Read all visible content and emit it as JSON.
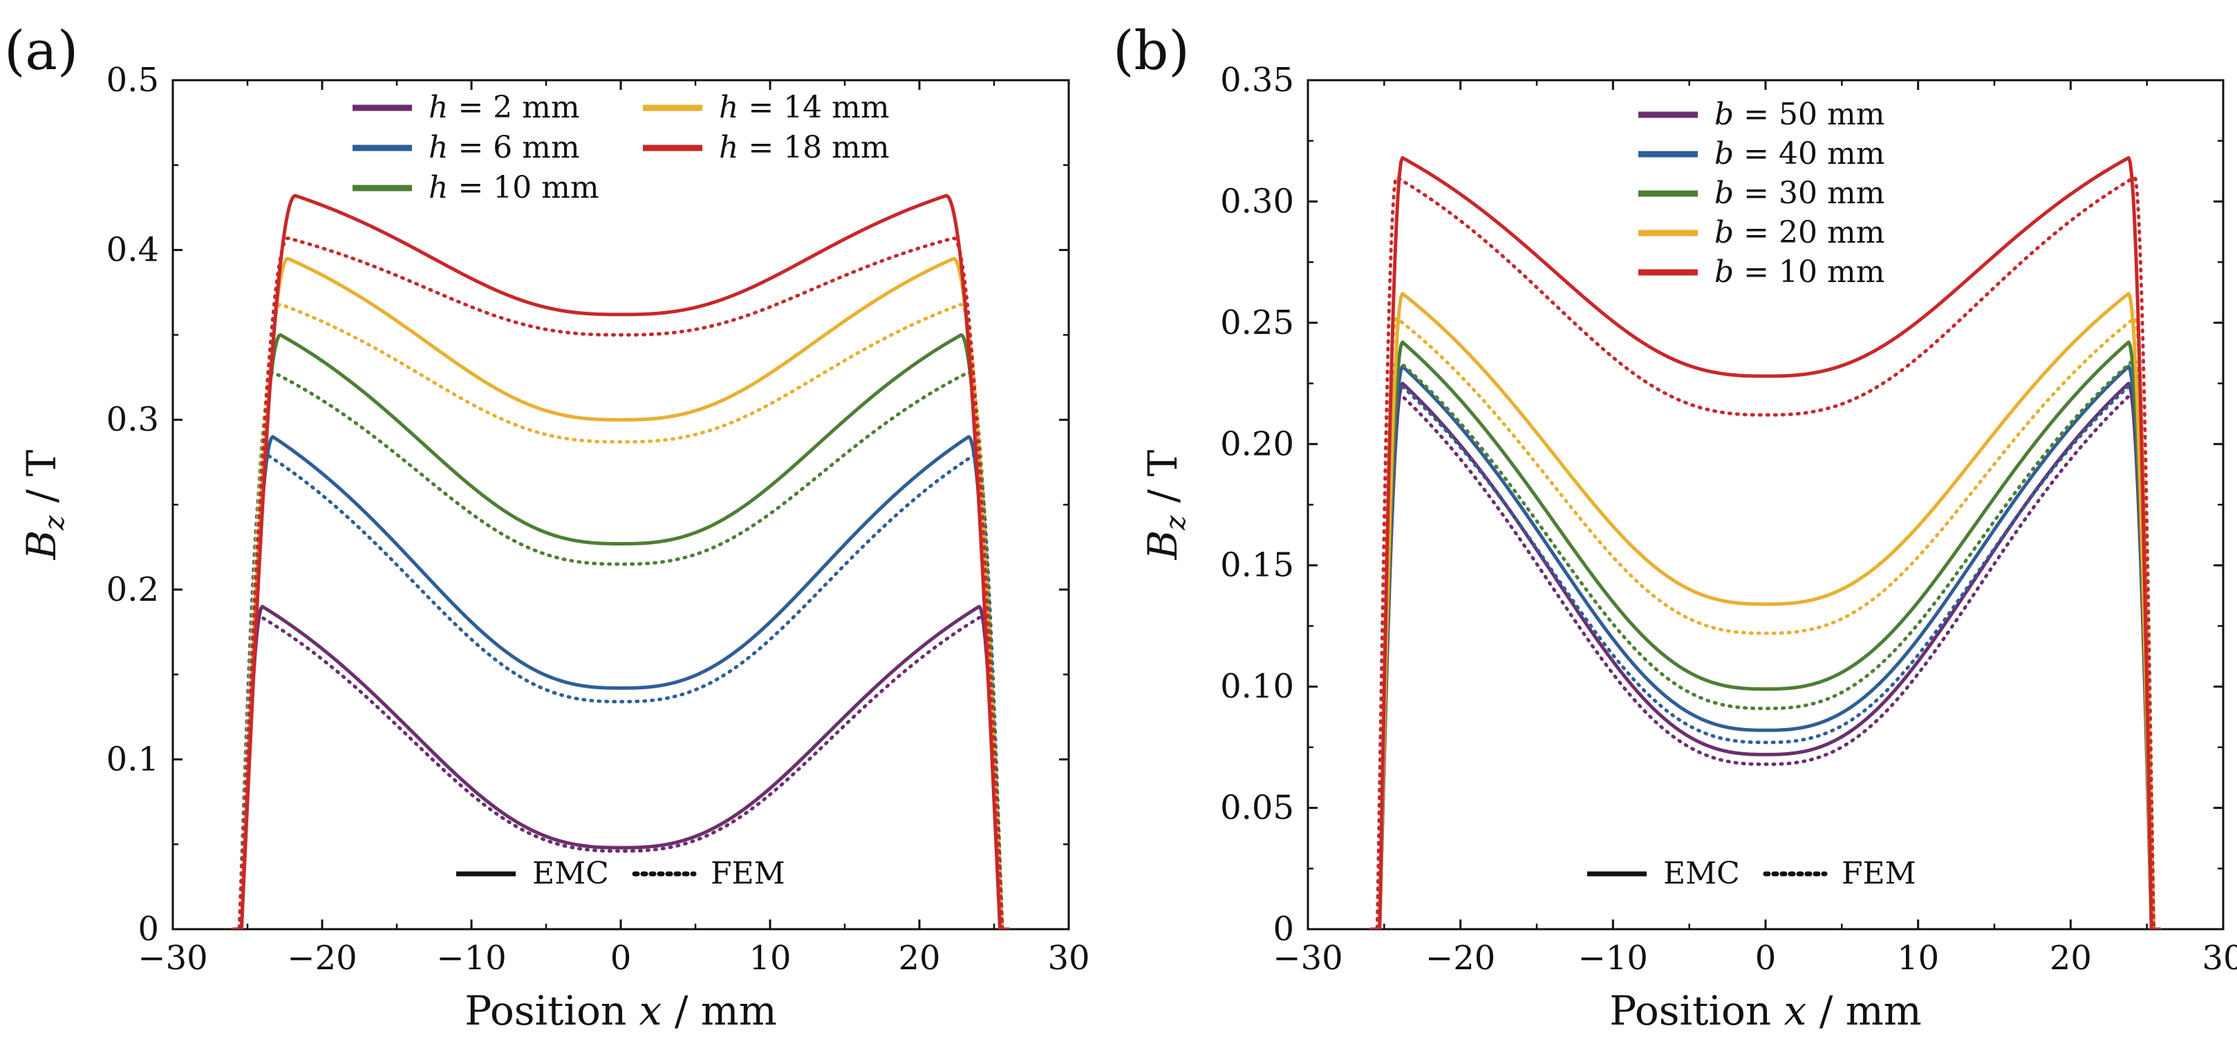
{
  "figure": {
    "line_colors": {
      "purple": "#6B2F6E",
      "blue": "#2E5E98",
      "green": "#4E7E35",
      "yellow": "#E8B030",
      "red": "#C8282A"
    },
    "style_legend": {
      "solid_label": "EMC",
      "dotted_label": "FEM"
    }
  },
  "chart_data": [
    {
      "panel_label": "(a)",
      "type": "line",
      "xlabel_prefix": "Position ",
      "xlabel_var": "x",
      "xlabel_suffix": " / mm",
      "ylabel_var": "B",
      "ylabel_sub": "z",
      "ylabel_suffix": " / T",
      "xlim": [
        -30,
        30
      ],
      "ylim": [
        0,
        0.5
      ],
      "x_ticks": [
        -30,
        -20,
        -10,
        0,
        10,
        20,
        30
      ],
      "x_tick_labels": [
        "−30",
        "−20",
        "−10",
        "0",
        "10",
        "20",
        "30"
      ],
      "y_ticks": [
        0,
        0.1,
        0.2,
        0.3,
        0.4,
        0.5
      ],
      "y_tick_labels": [
        "0",
        "0.1",
        "0.2",
        "0.3",
        "0.4",
        "0.5"
      ],
      "legend_placement": "top-center",
      "series": [
        {
          "name": "h = 2 mm",
          "legend_var": "h",
          "legend_value": " = 2 mm",
          "color": "#6B2F6E",
          "x_edge": 25.4,
          "emc": {
            "center": 0.048,
            "peak": 0.19,
            "peak_x": 24.0
          },
          "fem": {
            "center": 0.046,
            "peak": 0.185,
            "peak_x": 24.3
          }
        },
        {
          "name": "h = 6 mm",
          "legend_var": "h",
          "legend_value": " = 6 mm",
          "color": "#2E5E98",
          "x_edge": 25.4,
          "emc": {
            "center": 0.142,
            "peak": 0.29,
            "peak_x": 23.3
          },
          "fem": {
            "center": 0.134,
            "peak": 0.28,
            "peak_x": 23.8
          }
        },
        {
          "name": "h = 10 mm",
          "legend_var": "h",
          "legend_value": " = 10 mm",
          "color": "#4E7E35",
          "x_edge": 25.4,
          "emc": {
            "center": 0.227,
            "peak": 0.35,
            "peak_x": 22.8
          },
          "fem": {
            "center": 0.215,
            "peak": 0.328,
            "peak_x": 23.3
          }
        },
        {
          "name": "h = 14 mm",
          "legend_var": "h",
          "legend_value": " = 14 mm",
          "color": "#E8B030",
          "x_edge": 25.4,
          "emc": {
            "center": 0.3,
            "peak": 0.395,
            "peak_x": 22.3
          },
          "fem": {
            "center": 0.287,
            "peak": 0.368,
            "peak_x": 22.8
          }
        },
        {
          "name": "h = 18 mm",
          "legend_var": "h",
          "legend_value": " = 18 mm",
          "color": "#C8282A",
          "x_edge": 25.4,
          "emc": {
            "center": 0.362,
            "peak": 0.432,
            "peak_x": 21.8
          },
          "fem": {
            "center": 0.35,
            "peak": 0.407,
            "peak_x": 22.3
          }
        }
      ]
    },
    {
      "panel_label": "(b)",
      "type": "line",
      "xlabel_prefix": "Position ",
      "xlabel_var": "x",
      "xlabel_suffix": " / mm",
      "ylabel_var": "B",
      "ylabel_sub": "z",
      "ylabel_suffix": " / T",
      "xlim": [
        -30,
        30
      ],
      "ylim": [
        0,
        0.35
      ],
      "x_ticks": [
        -30,
        -20,
        -10,
        0,
        10,
        20,
        30
      ],
      "x_tick_labels": [
        "−30",
        "−20",
        "−10",
        "0",
        "10",
        "20",
        "30"
      ],
      "y_ticks": [
        0,
        0.05,
        0.1,
        0.15,
        0.2,
        0.25,
        0.3,
        0.35
      ],
      "y_tick_labels": [
        "0",
        "0.05",
        "0.10",
        "0.15",
        "0.20",
        "0.25",
        "0.30",
        "0.35"
      ],
      "legend_placement": "top-center",
      "series": [
        {
          "name": "b = 50 mm",
          "legend_var": "b",
          "legend_value": " = 50 mm",
          "color": "#6B2F6E",
          "x_edge": 25.3,
          "emc": {
            "center": 0.072,
            "peak": 0.225,
            "peak_x": 23.8
          },
          "fem": {
            "center": 0.068,
            "peak": 0.222,
            "peak_x": 24.2
          }
        },
        {
          "name": "b = 40 mm",
          "legend_var": "b",
          "legend_value": " = 40 mm",
          "color": "#2E5E98",
          "x_edge": 25.3,
          "emc": {
            "center": 0.082,
            "peak": 0.232,
            "peak_x": 23.8
          },
          "fem": {
            "center": 0.077,
            "peak": 0.226,
            "peak_x": 24.2
          }
        },
        {
          "name": "b = 30 mm",
          "legend_var": "b",
          "legend_value": " = 30 mm",
          "color": "#4E7E35",
          "x_edge": 25.3,
          "emc": {
            "center": 0.099,
            "peak": 0.242,
            "peak_x": 23.8
          },
          "fem": {
            "center": 0.091,
            "peak": 0.235,
            "peak_x": 24.2
          }
        },
        {
          "name": "b = 20 mm",
          "legend_var": "b",
          "legend_value": " = 20 mm",
          "color": "#E8B030",
          "x_edge": 25.3,
          "emc": {
            "center": 0.134,
            "peak": 0.262,
            "peak_x": 23.8
          },
          "fem": {
            "center": 0.122,
            "peak": 0.252,
            "peak_x": 24.2
          }
        },
        {
          "name": "b = 10 mm",
          "legend_var": "b",
          "legend_value": " = 10 mm",
          "color": "#C8282A",
          "x_edge": 25.3,
          "emc": {
            "center": 0.228,
            "peak": 0.318,
            "peak_x": 23.8
          },
          "fem": {
            "center": 0.212,
            "peak": 0.31,
            "peak_x": 24.2
          }
        }
      ]
    }
  ]
}
